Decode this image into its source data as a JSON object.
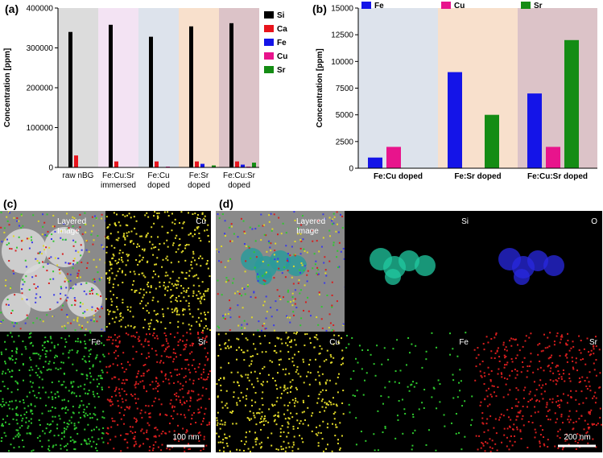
{
  "chart_data": [
    {
      "type": "bar",
      "panel_label": "(a)",
      "ylabel": "Concentration [ppm]",
      "categories": [
        "raw nBG",
        "Fe:Cu:Sr\nimmersed",
        "Fe:Cu\ndoped",
        "Fe:Sr\ndoped",
        "Fe:Cu:Sr\ndoped"
      ],
      "band_colors": [
        "#dcdcdc",
        "#f3e3f3",
        "#dde3ec",
        "#f8e0cc",
        "#dcc3c8"
      ],
      "series": [
        {
          "name": "Si",
          "color": "#000000",
          "values": [
            340000,
            358000,
            328000,
            354000,
            362000
          ]
        },
        {
          "name": "Ca",
          "color": "#e8141c",
          "values": [
            30000,
            15000,
            15000,
            15000,
            15000
          ]
        },
        {
          "name": "Fe",
          "color": "#1414e8",
          "values": [
            0,
            0,
            1000,
            9000,
            7000
          ]
        },
        {
          "name": "Cu",
          "color": "#e8148c",
          "values": [
            0,
            0,
            2000,
            0,
            2000
          ]
        },
        {
          "name": "Sr",
          "color": "#148c14",
          "values": [
            0,
            0,
            0,
            5000,
            12000
          ]
        }
      ],
      "ylim": [
        0,
        400000
      ],
      "yticks": [
        0,
        100000,
        200000,
        300000,
        400000
      ],
      "legend": "right"
    },
    {
      "type": "bar",
      "panel_label": "(b)",
      "ylabel": "Concentration [ppm]",
      "categories": [
        "Fe:Cu doped",
        "Fe:Sr doped",
        "Fe:Cu:Sr doped"
      ],
      "band_colors": [
        "#dde3ec",
        "#f8e0cc",
        "#dcc3c8"
      ],
      "series": [
        {
          "name": "Fe",
          "color": "#1414e8",
          "values": [
            1000,
            9000,
            7000
          ]
        },
        {
          "name": "Cu",
          "color": "#e8148c",
          "values": [
            2000,
            0,
            2000
          ]
        },
        {
          "name": "Sr",
          "color": "#148c14",
          "values": [
            0,
            5000,
            12000
          ]
        }
      ],
      "ylim": [
        0,
        15000
      ],
      "yticks": [
        0,
        2500,
        5000,
        7500,
        10000,
        12500,
        15000
      ],
      "legend": "top"
    }
  ],
  "micrographs": [
    {
      "label": "(c)",
      "tiles": [
        "Layered\nImage",
        "Cu",
        "Fe",
        "Sr"
      ],
      "scale_bar": "100 nm"
    },
    {
      "label": "(d)",
      "tiles": [
        "Layered\nImage",
        "Si",
        "O",
        "Cu",
        "Fe",
        "Sr"
      ],
      "scale_bar": "200 nm"
    }
  ]
}
